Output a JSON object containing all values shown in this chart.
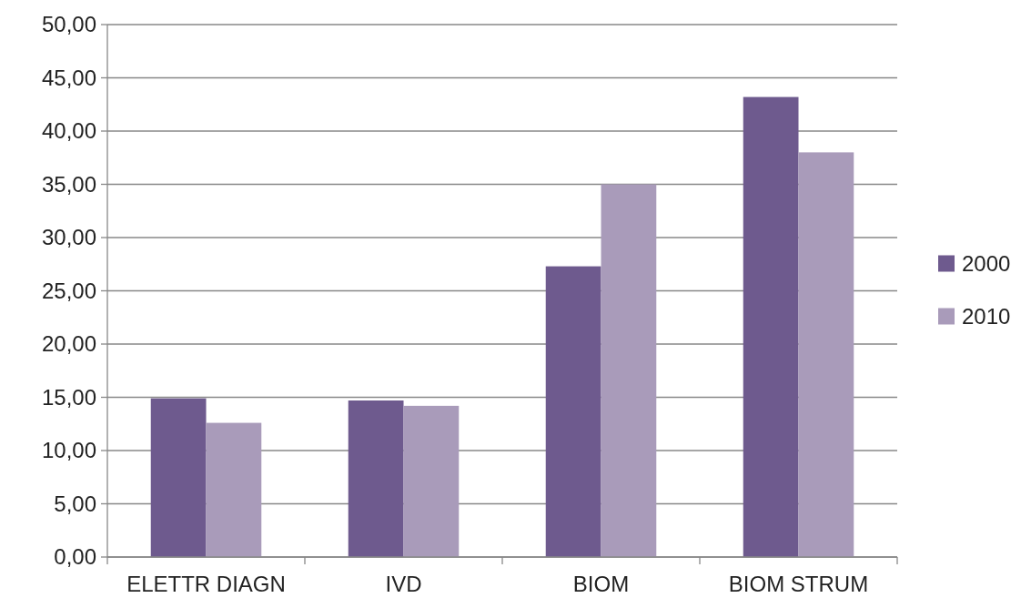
{
  "chart_data": {
    "type": "bar",
    "categories": [
      "ELETTR DIAGN",
      "IVD",
      "BIOM",
      "BIOM STRUM"
    ],
    "series": [
      {
        "name": "2000",
        "color": "#6e5a8e",
        "values": [
          14.9,
          14.7,
          27.3,
          43.2
        ]
      },
      {
        "name": "2010",
        "color": "#a99bba",
        "values": [
          12.6,
          14.2,
          35.0,
          38.0
        ]
      }
    ],
    "ylim": [
      0,
      50
    ],
    "yticks": [
      {
        "value": 0,
        "label": "0,00"
      },
      {
        "value": 5,
        "label": "5,00"
      },
      {
        "value": 10,
        "label": "10,00"
      },
      {
        "value": 15,
        "label": "15,00"
      },
      {
        "value": 20,
        "label": "20,00"
      },
      {
        "value": 25,
        "label": "25,00"
      },
      {
        "value": 30,
        "label": "30,00"
      },
      {
        "value": 35,
        "label": "35,00"
      },
      {
        "value": 40,
        "label": "40,00"
      },
      {
        "value": 45,
        "label": "45,00"
      },
      {
        "value": 50,
        "label": "50,00"
      }
    ],
    "grid": "y",
    "legend": "right"
  }
}
